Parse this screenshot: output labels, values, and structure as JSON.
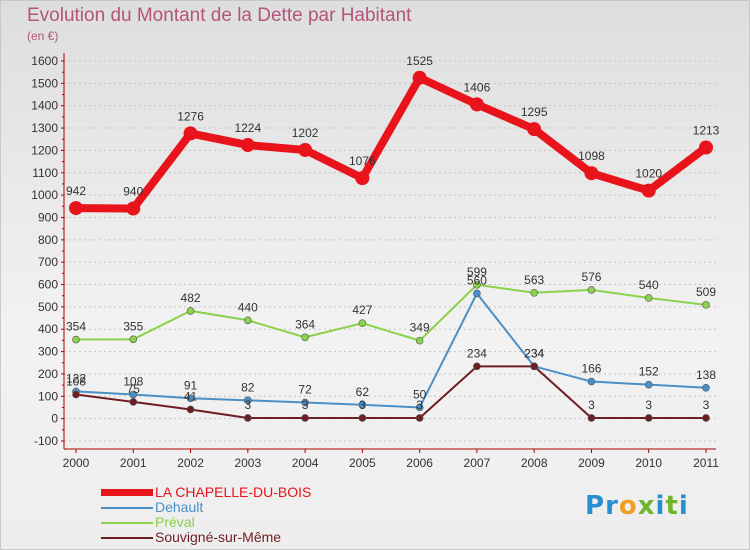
{
  "title": "Evolution du Montant de la Dette par Habitant",
  "unit_label": "(en €)",
  "logo": {
    "letters": [
      "P",
      "r",
      "o",
      "x",
      "i",
      "t",
      "i"
    ],
    "colors": [
      "#2a8fd1",
      "#2a8fd1",
      "#f0a020",
      "#6fb52c",
      "#2a8fd1",
      "#6fb52c",
      "#2a8fd1"
    ]
  },
  "chart_data": {
    "type": "line",
    "x": [
      "2000",
      "2001",
      "2002",
      "2003",
      "2004",
      "2005",
      "2006",
      "2007",
      "2008",
      "2009",
      "2010",
      "2011"
    ],
    "ylim": [
      -100,
      1600
    ],
    "yticks": [
      "-100",
      "0",
      "100",
      "200",
      "300",
      "400",
      "500",
      "600",
      "700",
      "800",
      "900",
      "1000",
      "1100",
      "1200",
      "1300",
      "1400",
      "1500",
      "1600"
    ],
    "grid": "horizontal dashed",
    "legend_position": "bottom-left",
    "series": [
      {
        "name": "LA CHAPELLE-DU-BOIS",
        "color": "#e8131b",
        "values": [
          942,
          940,
          1276,
          1224,
          1202,
          1076,
          1525,
          1406,
          1295,
          1098,
          1020,
          1213
        ],
        "labels": [
          "942",
          "940",
          "1276",
          "1224",
          "1202",
          "1076",
          "1525",
          "1406",
          "1295",
          "1098",
          "1020",
          "1213"
        ]
      },
      {
        "name": "Dehault",
        "color": "#4a90c8",
        "values": [
          122,
          108,
          91,
          82,
          72,
          62,
          50,
          560,
          234,
          166,
          152,
          138
        ],
        "labels": [
          "122",
          "108",
          "91",
          "82",
          "72",
          "62",
          "50",
          "560",
          "234",
          "166",
          "152",
          "138"
        ]
      },
      {
        "name": "Préval",
        "color": "#8bd14a",
        "values": [
          354,
          355,
          482,
          440,
          364,
          427,
          349,
          599,
          563,
          576,
          540,
          509
        ],
        "labels": [
          "354",
          "355",
          "482",
          "440",
          "364",
          "427",
          "349",
          "599",
          "563",
          "576",
          "540",
          "509"
        ]
      },
      {
        "name": "Souvigné-sur-Même",
        "color": "#6e1e22",
        "values": [
          108,
          75,
          41,
          3,
          3,
          3,
          3,
          234,
          234,
          3,
          3,
          3
        ],
        "labels": [
          "108",
          "75",
          "41",
          "3",
          "3",
          "3",
          "3",
          "234",
          "234",
          "3",
          "3",
          "3"
        ]
      }
    ]
  }
}
